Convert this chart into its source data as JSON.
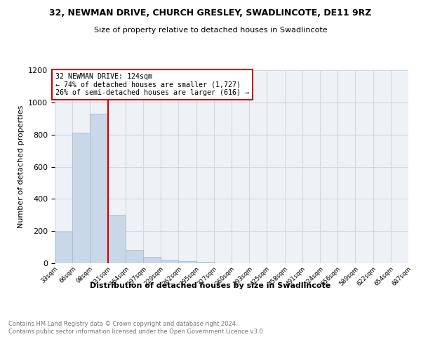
{
  "title": "32, NEWMAN DRIVE, CHURCH GRESLEY, SWADLINCOTE, DE11 9RZ",
  "subtitle": "Size of property relative to detached houses in Swadlincote",
  "xlabel": "Distribution of detached houses by size in Swadlincote",
  "ylabel": "Number of detached properties",
  "footnote": "Contains HM Land Registry data © Crown copyright and database right 2024.\nContains public sector information licensed under the Open Government Licence v3.0.",
  "bin_edges": [
    33,
    66,
    98,
    131,
    164,
    197,
    229,
    262,
    295,
    327,
    360,
    393,
    425,
    458,
    491,
    524,
    556,
    589,
    622,
    654,
    687
  ],
  "bar_heights": [
    195,
    810,
    930,
    300,
    85,
    38,
    22,
    15,
    10,
    0,
    0,
    0,
    0,
    0,
    0,
    0,
    0,
    0,
    0,
    0
  ],
  "bar_color": "#c8d8e8",
  "bar_edge_color": "#a0b8cc",
  "vline_x": 131,
  "vline_color": "#cc0000",
  "annotation_text": "32 NEWMAN DRIVE: 124sqm\n← 74% of detached houses are smaller (1,727)\n26% of semi-detached houses are larger (616) →",
  "annotation_box_color": "#cc0000",
  "annotation_fill": "#ffffff",
  "ylim": [
    0,
    1200
  ],
  "yticks": [
    0,
    200,
    400,
    600,
    800,
    1000,
    1200
  ],
  "tick_labels": [
    "33sqm",
    "66sqm",
    "98sqm",
    "131sqm",
    "164sqm",
    "197sqm",
    "229sqm",
    "262sqm",
    "295sqm",
    "327sqm",
    "360sqm",
    "393sqm",
    "425sqm",
    "458sqm",
    "491sqm",
    "524sqm",
    "556sqm",
    "589sqm",
    "622sqm",
    "654sqm",
    "687sqm"
  ],
  "grid_color": "#d0d8e0",
  "plot_bg_color": "#eef2f6"
}
